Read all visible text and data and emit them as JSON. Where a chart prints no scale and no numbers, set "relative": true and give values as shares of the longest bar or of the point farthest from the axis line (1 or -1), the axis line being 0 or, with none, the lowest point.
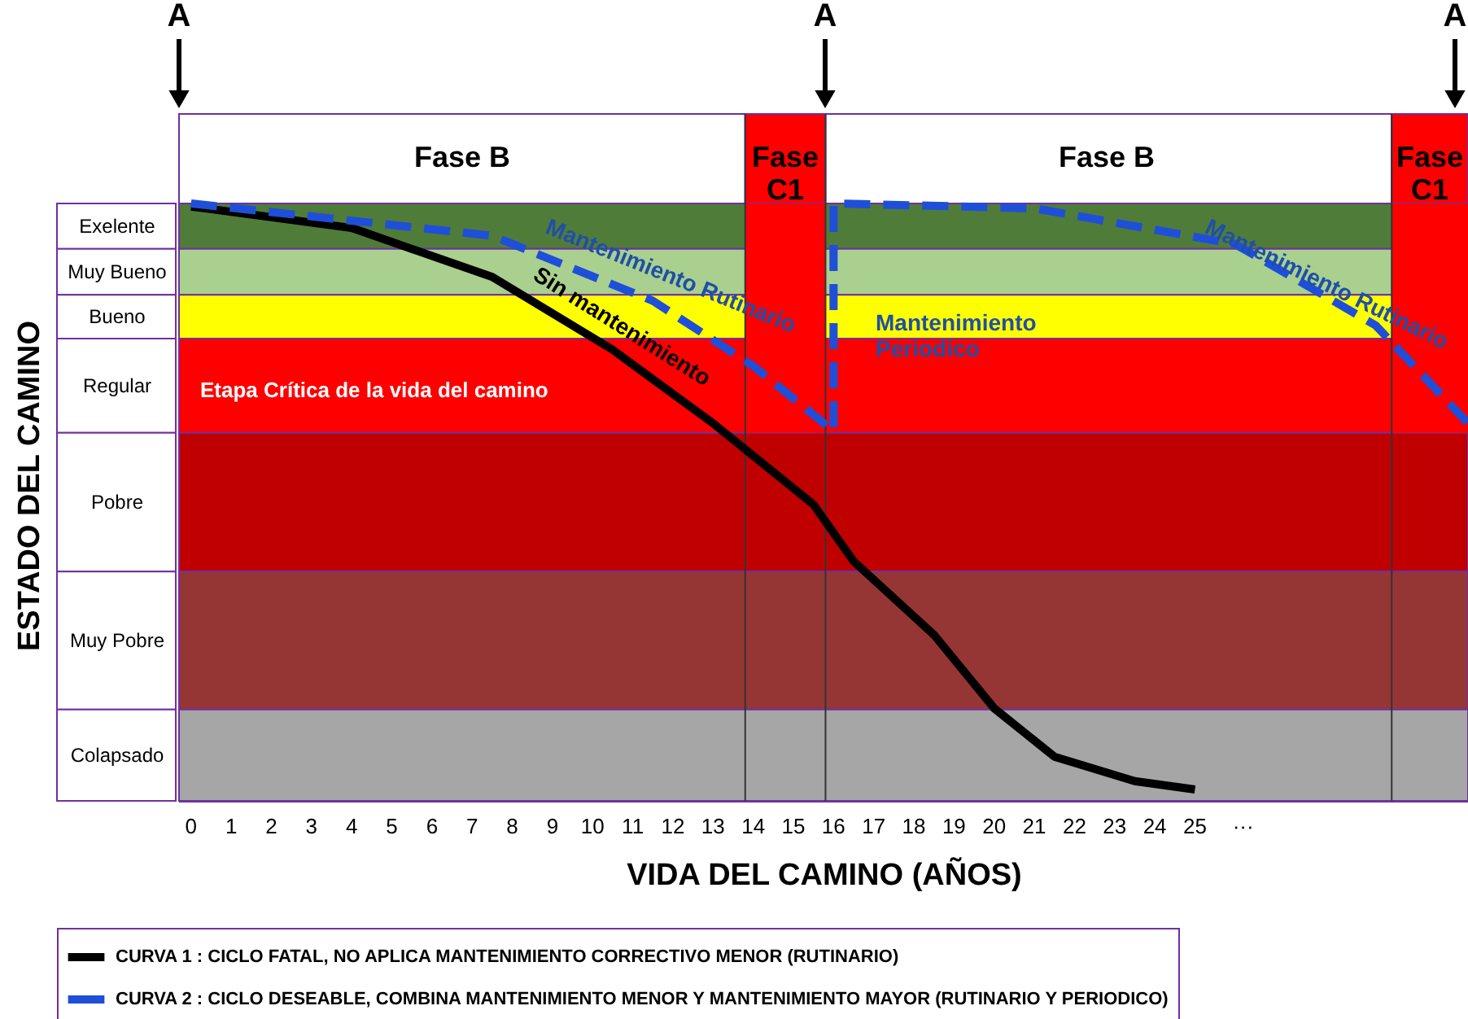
{
  "chart_data": {
    "type": "line",
    "relative": true,
    "xlabel": "VIDA DEL CAMINO (AÑOS)",
    "ylabel": "ESTADO DEL CAMINO",
    "xlim": [
      -0.3,
      31.8
    ],
    "xticks": [
      0,
      1,
      2,
      3,
      4,
      5,
      6,
      7,
      8,
      9,
      10,
      11,
      12,
      13,
      14,
      15,
      16,
      17,
      18,
      19,
      20,
      21,
      22,
      23,
      24,
      25,
      {
        "value": 26.2,
        "label": "···"
      }
    ],
    "grid": false,
    "legend": "bottom",
    "series": [
      {
        "name": "CURVA 1 : CICLO FATAL, NO APLICA MANTENIMIENTO CORRECTIVO MENOR (RUTINARIO)",
        "color": "#000000",
        "line_style": "solid",
        "x": [
          0,
          4,
          7.5,
          10.5,
          13,
          15.5,
          16.5,
          18.5,
          20,
          21.5,
          23.5,
          25
        ],
        "values": [
          0.995,
          0.959,
          0.877,
          0.755,
          0.632,
          0.496,
          0.401,
          0.278,
          0.155,
          0.074,
          0.033,
          0.019
        ]
      },
      {
        "name": "CURVA 2 : CICLO DESEABLE, COMBINA MANTENIMIENTO MENOR Y MANTENIMIENTO MAYOR (RUTINARIO Y PERIODICO)",
        "color": "#1f4fd8",
        "line_style": "dashed",
        "x": [
          0,
          7.5,
          11.5,
          14,
          16,
          16,
          21,
          26,
          29.5,
          31.8
        ],
        "values": [
          1.0,
          0.946,
          0.837,
          0.728,
          0.619,
          1.0,
          0.992,
          0.932,
          0.796,
          0.632
        ]
      }
    ],
    "bands": [
      {
        "axis": "y",
        "from": 0.924,
        "to": 1.0,
        "label": "Exelente",
        "color": "#507c3a"
      },
      {
        "axis": "y",
        "from": 0.847,
        "to": 0.924,
        "label": "Muy Bueno",
        "color": "#a9d08e"
      },
      {
        "axis": "y",
        "from": 0.774,
        "to": 0.847,
        "label": "Bueno",
        "color": "#ffff00"
      },
      {
        "axis": "y",
        "from": 0.616,
        "to": 0.774,
        "label": "Regular",
        "color": "#ff0000"
      },
      {
        "axis": "y",
        "from": 0.384,
        "to": 0.616,
        "label": "Pobre",
        "color": "#c00000"
      },
      {
        "axis": "y",
        "from": 0.153,
        "to": 0.384,
        "label": "Muy Pobre",
        "color": "#963634"
      },
      {
        "axis": "y",
        "from": 0.0,
        "to": 0.153,
        "label": "Colapsado",
        "color": "#a6a6a6"
      },
      {
        "axis": "x",
        "from": 13.8,
        "to": 15.8,
        "label": "Fase C1",
        "color": "#ff0000"
      },
      {
        "axis": "x",
        "from": 29.9,
        "to": 31.8,
        "label": "Fase C1",
        "color": "#ff0000"
      }
    ],
    "annotations": [
      "A",
      "A",
      "A",
      "Fase B",
      "Fase B",
      "Etapa Crítica de la vida del camino",
      "Sin mantenimiento",
      "Mantenimiento Rutinario",
      "Mantenimiento Rutinario",
      "Mantenimiento Periodico"
    ]
  }
}
